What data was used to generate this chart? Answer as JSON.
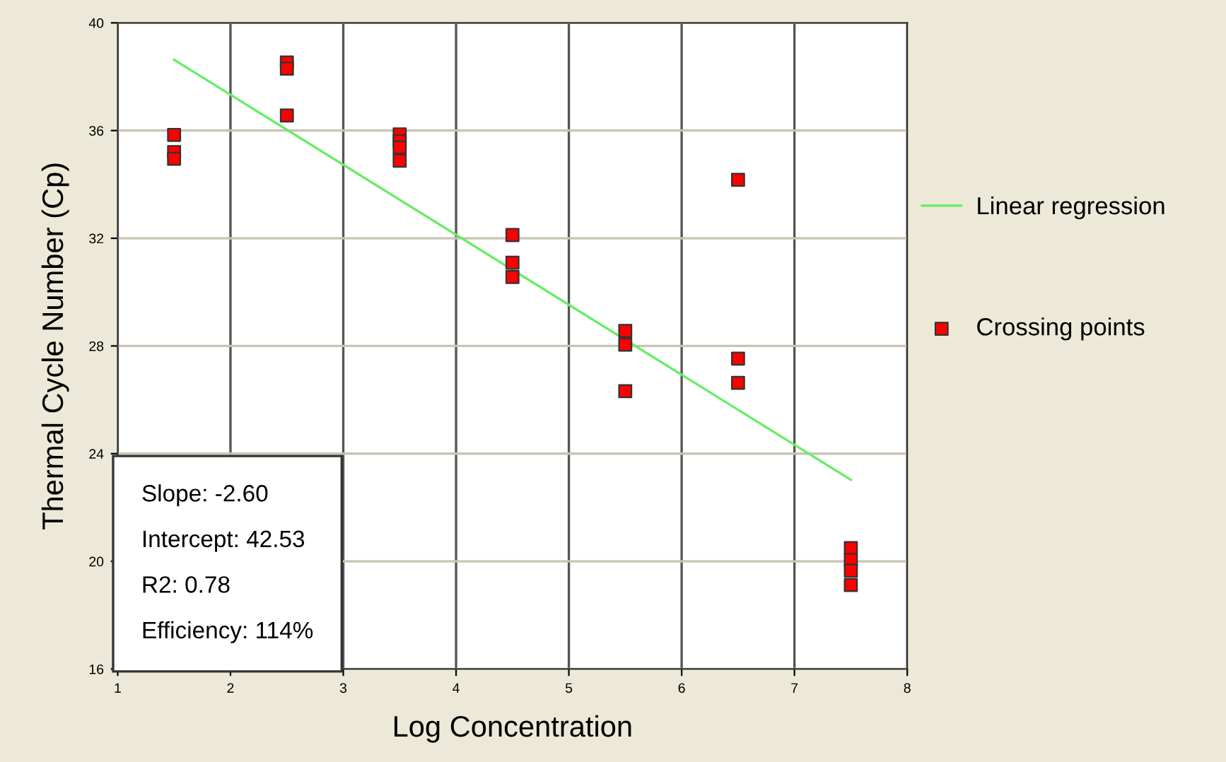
{
  "chart_data": {
    "type": "scatter",
    "xlabel": "Log Concentration",
    "ylabel": "Thermal Cycle Number (Cp)",
    "xlim": [
      1,
      8
    ],
    "xticks": [
      1,
      2,
      3,
      4,
      5,
      6,
      7,
      8
    ],
    "ylim": [
      16,
      40
    ],
    "yticks": [
      16,
      20,
      24,
      28,
      32,
      36,
      40
    ],
    "grid": true,
    "legend": "right",
    "series": [
      {
        "name": "Linear regression",
        "type": "line",
        "color": "#66ee66",
        "marker": "none",
        "x": [
          1.5,
          7.5
        ],
        "values": [
          38.63,
          23.03
        ]
      },
      {
        "name": "Crossing points",
        "color": "#ff0000",
        "marker": "square",
        "x": [
          1.5,
          1.5,
          1.5,
          2.5,
          2.5,
          2.5,
          3.5,
          3.5,
          3.5,
          3.5,
          4.5,
          4.5,
          4.5,
          5.5,
          5.5,
          5.5,
          6.5,
          6.5,
          6.5,
          7.5,
          7.5,
          7.5,
          7.5
        ],
        "values": [
          35.84,
          35.2,
          34.95,
          38.53,
          38.3,
          36.56,
          35.86,
          35.6,
          35.37,
          34.88,
          32.12,
          31.09,
          30.56,
          28.56,
          28.05,
          26.32,
          34.17,
          27.53,
          26.63,
          20.49,
          20.05,
          19.65,
          19.12
        ]
      }
    ],
    "annotations": [
      "Slope: -2.60",
      "Intercept: 42.53",
      "R2: 0.78",
      "Efficiency: 114%"
    ]
  }
}
